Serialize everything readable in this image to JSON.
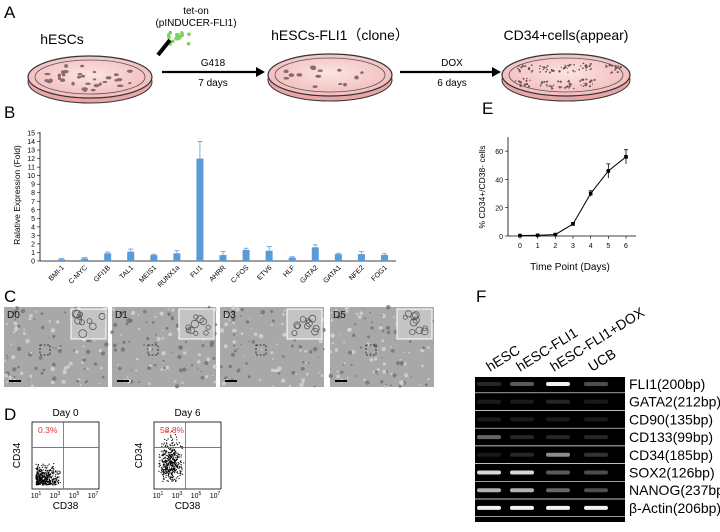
{
  "panels": {
    "a": "A",
    "b": "B",
    "c": "C",
    "d": "D",
    "e": "E",
    "f": "F"
  },
  "panel_a": {
    "vector_line1": "tet-on",
    "vector_line2": "(pINDUCER-FLI1)",
    "dish1_label": "hESCs",
    "step1_label": "G418",
    "step1_time": "7 days",
    "dish2_label": "hESCs-FLI1（clone）",
    "step2_label": "DOX",
    "step2_time": "6 days",
    "dish3_label": "CD34+cells(appear)"
  },
  "panel_c": {
    "images": [
      "D0",
      "D1",
      "D3",
      "D5"
    ]
  },
  "panel_d": {
    "plots": [
      {
        "title": "Day 0",
        "percent": "0.3%",
        "ylabel": "CD34",
        "xlabel": "CD38",
        "ticks": [
          "10",
          "10",
          "10",
          "10"
        ],
        "exponents": [
          "1",
          "3",
          "5",
          "7"
        ]
      },
      {
        "title": "Day 6",
        "percent": "58.8%",
        "ylabel": "CD34",
        "xlabel": "CD38",
        "ticks": [
          "10",
          "10",
          "10",
          "10"
        ],
        "exponents": [
          "1",
          "3",
          "5",
          "7"
        ]
      }
    ]
  },
  "panel_f": {
    "lanes": [
      "hESC",
      "hESC-FLI1",
      "hESC-FLI1+DOX",
      "UCB"
    ],
    "bands": [
      "FLI1(200bp)",
      "GATA2(212bp)",
      "CD90(135bp)",
      "CD133(99bp)",
      "CD34(185bp)",
      "SOX2(126bp)",
      "NANOG(237bp)",
      "β-Actin(206bp)"
    ]
  },
  "chart_data": [
    {
      "type": "bar",
      "panel": "B",
      "categories": [
        "BMI-1",
        "C-MYC",
        "GFI1B",
        "TAL1",
        "MEIS1",
        "RUNX1a",
        "FLI1",
        "AHRR",
        "C-FOS",
        "ETV6",
        "HLF",
        "GATA2",
        "GATA1",
        "NFE2",
        "FOG1"
      ],
      "values": [
        0.2,
        0.3,
        0.9,
        1.1,
        0.7,
        0.9,
        12.0,
        0.7,
        1.3,
        1.2,
        0.4,
        1.6,
        0.8,
        0.8,
        0.7
      ],
      "errors": [
        0.1,
        0.1,
        0.15,
        0.3,
        0.1,
        0.3,
        2.0,
        0.4,
        0.2,
        0.5,
        0.1,
        0.3,
        0.1,
        0.3,
        0.15
      ],
      "yticks": [
        "0",
        "1",
        "2",
        "3",
        "4",
        "5",
        "6",
        "7",
        "8",
        "9",
        "10",
        "11",
        "12",
        "13",
        "14",
        "15"
      ],
      "ylabel": "Ralative Expression (Fold)",
      "ylim": [
        0,
        15
      ],
      "color": "#5b9bd5"
    },
    {
      "type": "line",
      "panel": "E",
      "x": [
        0,
        1,
        2,
        3,
        4,
        5,
        6
      ],
      "y": [
        0.3,
        0.5,
        1.0,
        8.5,
        30.0,
        46.0,
        56.0
      ],
      "errors": [
        0.2,
        0.3,
        0.5,
        1.0,
        2.0,
        5.0,
        5.0
      ],
      "xticks": [
        "0",
        "1",
        "2",
        "3",
        "4",
        "5",
        "6"
      ],
      "yticks": [
        "0",
        "20",
        "40",
        "60"
      ],
      "xlabel": "Time Point (Days)",
      "ylabel": "% CD34+/CD38- cells",
      "ylim": [
        0,
        70
      ]
    }
  ]
}
